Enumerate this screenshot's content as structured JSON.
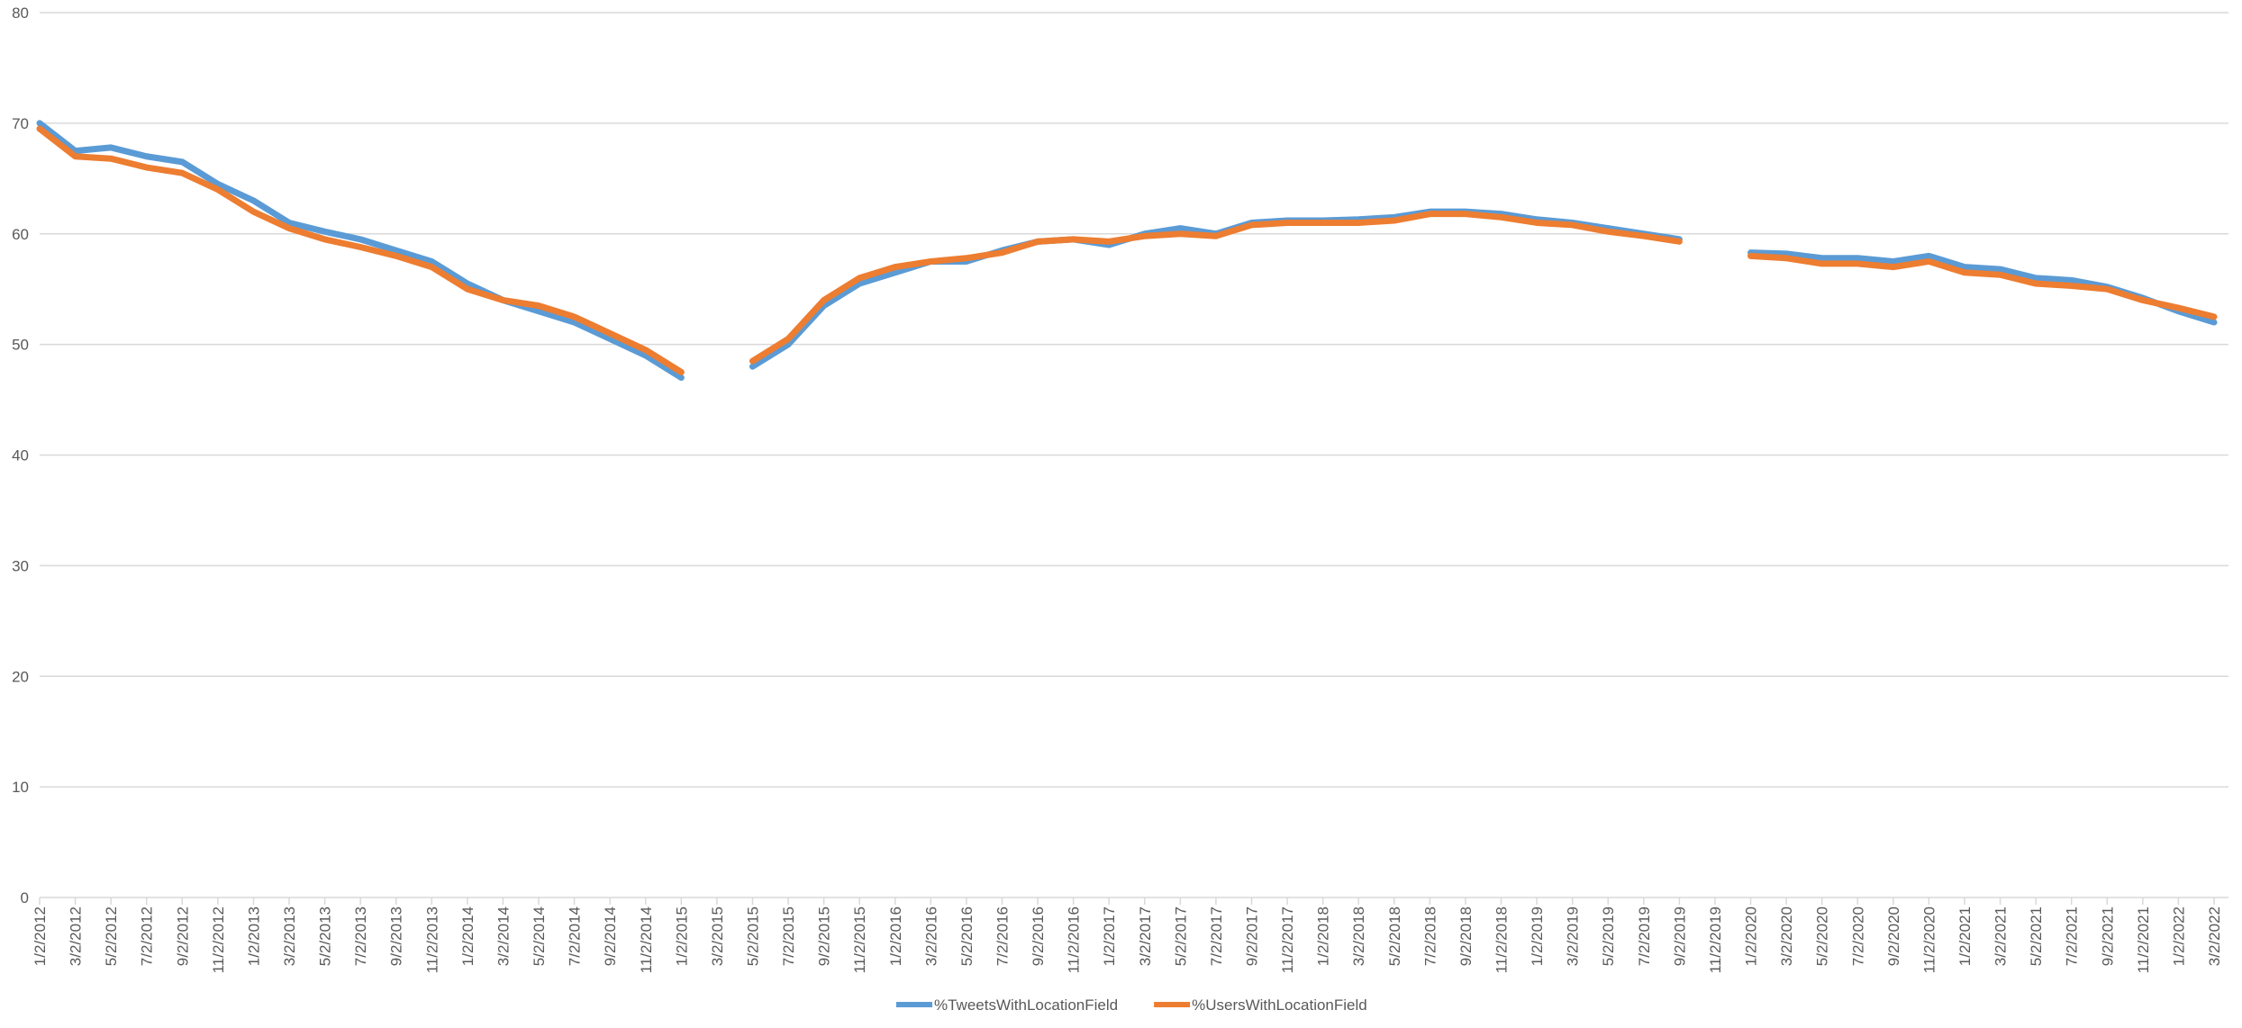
{
  "chart_data": {
    "type": "line",
    "categories": [
      "1/2/2012",
      "3/2/2012",
      "5/2/2012",
      "7/2/2012",
      "9/2/2012",
      "11/2/2012",
      "1/2/2013",
      "3/2/2013",
      "5/2/2013",
      "7/2/2013",
      "9/2/2013",
      "11/2/2013",
      "1/2/2014",
      "3/2/2014",
      "5/2/2014",
      "7/2/2014",
      "9/2/2014",
      "11/2/2014",
      "1/2/2015",
      "3/2/2015",
      "5/2/2015",
      "7/2/2015",
      "9/2/2015",
      "11/2/2015",
      "1/2/2016",
      "3/2/2016",
      "5/2/2016",
      "7/2/2016",
      "9/2/2016",
      "11/2/2016",
      "1/2/2017",
      "3/2/2017",
      "5/2/2017",
      "7/2/2017",
      "9/2/2017",
      "11/2/2017",
      "1/2/2018",
      "3/2/2018",
      "5/2/2018",
      "7/2/2018",
      "9/2/2018",
      "11/2/2018",
      "1/2/2019",
      "3/2/2019",
      "5/2/2019",
      "7/2/2019",
      "9/2/2019",
      "11/2/2019",
      "1/2/2020",
      "3/2/2020",
      "5/2/2020",
      "7/2/2020",
      "9/2/2020",
      "11/2/2020",
      "1/2/2021",
      "3/2/2021",
      "5/2/2021",
      "7/2/2021",
      "9/2/2021",
      "11/2/2021",
      "1/2/2022",
      "3/2/2022"
    ],
    "series": [
      {
        "name": "%TweetsWithLocationField",
        "color": "#5b9bd5",
        "values": [
          70,
          67.5,
          67.8,
          67,
          66.5,
          64.5,
          63,
          61,
          60.2,
          59.5,
          58.5,
          57.5,
          55.5,
          54,
          53,
          52,
          50.5,
          49,
          47,
          null,
          48,
          50,
          53.5,
          55.5,
          56.5,
          57.5,
          57.5,
          58.5,
          59.3,
          59.5,
          59,
          60,
          60.5,
          60,
          61,
          61.2,
          61.2,
          61.3,
          61.5,
          62,
          62,
          61.8,
          61.3,
          61,
          60.5,
          60,
          59.5,
          null,
          58.3,
          58.2,
          57.8,
          57.8,
          57.5,
          58,
          57,
          56.8,
          56,
          55.8,
          55.2,
          54.2,
          53,
          52
        ]
      },
      {
        "name": "%UsersWithLocationField",
        "color": "#ed7d31",
        "values": [
          69.5,
          67,
          66.8,
          66,
          65.5,
          64,
          62,
          60.5,
          59.5,
          58.8,
          58,
          57,
          55,
          54,
          53.5,
          52.5,
          51,
          49.5,
          47.5,
          null,
          48.5,
          50.5,
          54,
          56,
          57,
          57.5,
          57.8,
          58.3,
          59.3,
          59.5,
          59.3,
          59.8,
          60,
          59.8,
          60.8,
          61,
          61,
          61,
          61.2,
          61.8,
          61.8,
          61.5,
          61,
          60.8,
          60.2,
          59.8,
          59.3,
          null,
          58,
          57.8,
          57.3,
          57.3,
          57,
          57.5,
          56.5,
          56.3,
          55.5,
          55.3,
          55,
          54,
          53.3,
          52.5
        ]
      }
    ],
    "ylim": [
      0,
      80
    ],
    "yticks": [
      0,
      10,
      20,
      30,
      40,
      50,
      60,
      70,
      80
    ],
    "grid": true
  }
}
